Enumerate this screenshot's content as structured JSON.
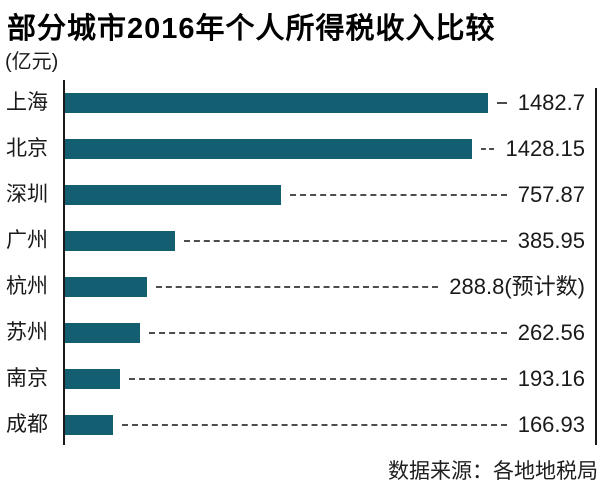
{
  "title": "部分城市2016年个人所得税收入比较",
  "unit_label": "(亿元)",
  "source_label": "数据来源：各地地税局",
  "colors": {
    "bar": "#135e71",
    "axis": "#1a1a1a",
    "leader_dash": "#4d4d4d",
    "text": "#1a1a1a",
    "background": "#ffffff"
  },
  "chart_data": {
    "type": "bar",
    "orientation": "horizontal",
    "title": "部分城市2016年个人所得税收入比较",
    "unit": "亿元",
    "categories": [
      "上海",
      "北京",
      "深圳",
      "广州",
      "杭州",
      "苏州",
      "南京",
      "成都"
    ],
    "values": [
      1482.7,
      1428.15,
      757.87,
      385.95,
      288.8,
      262.56,
      193.16,
      166.93
    ],
    "value_labels": [
      "1482.7",
      "1428.15",
      "757.87",
      "385.95",
      "288.8(预计数)",
      "262.56",
      "193.16",
      "166.93"
    ],
    "xlim": [
      0,
      1482.7
    ],
    "grid": false,
    "legend": false,
    "source": "数据来源：各地地税局",
    "notes": "杭州 value is an estimate (预计数); dashed leader lines connect bars to right-aligned value labels"
  }
}
